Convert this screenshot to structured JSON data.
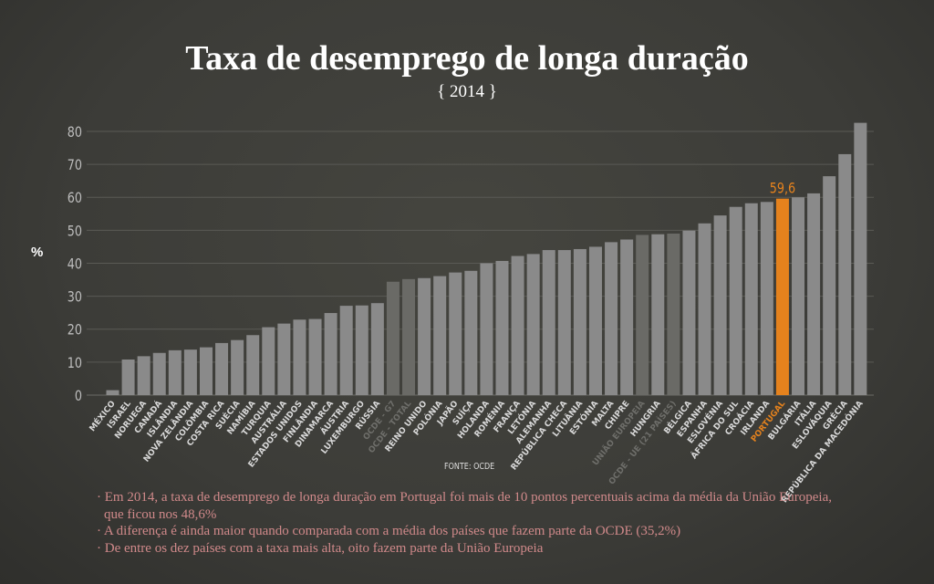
{
  "title": "Taxa de desemprego de longa duração",
  "subtitle": "{ 2014 }",
  "source": "FONTE: OCDE",
  "notes": [
    "· Em 2014, a taxa de desemprego de longa duração em Portugal foi mais de 10 pontos percentuais acima da média da União Europeia, que ficou nos 48,6%",
    "· A diferença é ainda maior quando comparada com a média dos países que fazem parte da OCDE (35,2%)",
    "· De entre os dez países com a taxa mais alta, oito fazem parte da União Europeia"
  ],
  "colors": {
    "bar": "#8a8a8a",
    "aggregate": "#6a6a66",
    "highlight": "#e5821d",
    "grid": "#5a5a55",
    "tick": "#bdbdbd"
  },
  "chart_data": {
    "type": "bar",
    "title": "Taxa de desemprego de longa duração",
    "subtitle": "{ 2014 }",
    "xlabel": "",
    "ylabel": "%",
    "ylim": [
      0,
      80
    ],
    "yticks": [
      0,
      10,
      20,
      30,
      40,
      50,
      60,
      70,
      80
    ],
    "grid": true,
    "categories": [
      "MÉXICO",
      "ISRAEL",
      "NORUEGA",
      "CANADÁ",
      "ISLÂNDIA",
      "NOVA ZELÂNDIA",
      "COLÔMBIA",
      "COSTA RICA",
      "SUÉCIA",
      "NAMÍBIA",
      "TURQUIA",
      "AUSTRÁLIA",
      "ESTADOS UNIDOS",
      "FINLÂNDIA",
      "DINAMARCA",
      "ÁUSTRIA",
      "LUXEMBURGO",
      "RÚSSIA",
      "OCDE - G7",
      "OCDE - TOTAL",
      "REINO UNIDO",
      "POLÓNIA",
      "JAPÃO",
      "SUÍÇA",
      "HOLANDA",
      "ROMÉNIA",
      "FRANÇA",
      "LETÓNIA",
      "ALEMANHA",
      "REPÚBLICA CHECA",
      "LITUÂNIA",
      "ESTÓNIA",
      "MALTA",
      "CHIPRE",
      "UNIÃO EUROPEIA",
      "HUNGRIA",
      "OCDE - UE (21 PAÍSES)",
      "BÉLGICA",
      "ESPANHA",
      "ESLOVÉNIA",
      "ÁFRICA DO SUL",
      "CROÁCIA",
      "IRLANDA",
      "PORTUGAL",
      "BULGÁRIA",
      "ITÁLIA",
      "ESLOVÁQUIA",
      "GRÉCIA",
      "REPÚBLICA DA MACEDÓNIA"
    ],
    "values": [
      1.5,
      10.8,
      11.8,
      12.8,
      13.6,
      13.8,
      14.5,
      15.8,
      16.7,
      18.2,
      20.6,
      21.7,
      22.9,
      23.1,
      24.9,
      27.1,
      27.2,
      27.9,
      34.4,
      35.2,
      35.5,
      36.1,
      37.2,
      37.7,
      40.0,
      40.7,
      42.2,
      42.8,
      44.0,
      44.0,
      44.3,
      45.0,
      46.4,
      47.2,
      48.6,
      48.8,
      49.0,
      49.9,
      52.1,
      54.5,
      57.1,
      58.2,
      58.6,
      59.6,
      60.0,
      61.2,
      66.4,
      73.1,
      82.6
    ],
    "aggregates": [
      "OCDE - G7",
      "OCDE - TOTAL",
      "UNIÃO EUROPEIA",
      "OCDE - UE (21 PAÍSES)"
    ],
    "highlight": "PORTUGAL",
    "data_labels": [
      {
        "category": "PORTUGAL",
        "text": "59,6"
      }
    ]
  }
}
